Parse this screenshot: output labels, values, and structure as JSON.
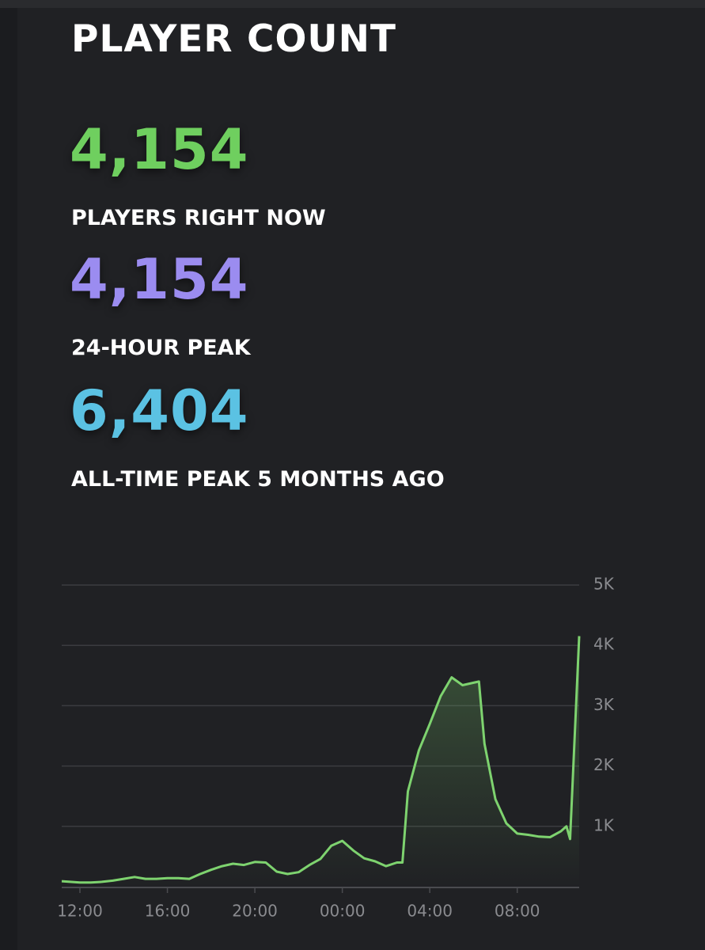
{
  "title": "PLAYER COUNT",
  "stats": [
    {
      "value": "4,154",
      "label": "PLAYERS RIGHT NOW",
      "color": "#6fcf5f"
    },
    {
      "value": "4,154",
      "label": "24-HOUR PEAK",
      "color": "#9b8cf0"
    },
    {
      "value": "6,404",
      "label": "ALL-TIME PEAK 5 MONTHS AGO",
      "color": "#5bc2e3"
    }
  ],
  "chart_data": {
    "type": "line",
    "x": [
      "11:10",
      "12:00",
      "12:30",
      "13:00",
      "13:30",
      "14:00",
      "14:30",
      "15:00",
      "15:30",
      "16:00",
      "16:30",
      "17:00",
      "17:30",
      "18:00",
      "18:30",
      "19:00",
      "19:30",
      "20:00",
      "20:30",
      "21:00",
      "21:30",
      "22:00",
      "22:30",
      "23:00",
      "23:30",
      "00:00",
      "00:30",
      "01:00",
      "01:30",
      "02:00",
      "02:30",
      "02:45",
      "03:00",
      "03:30",
      "04:00",
      "04:30",
      "05:00",
      "05:30",
      "06:00",
      "06:15",
      "06:30",
      "07:00",
      "07:30",
      "08:00",
      "08:30",
      "09:00",
      "09:30",
      "10:00",
      "10:15",
      "10:25",
      "10:50"
    ],
    "series": [
      {
        "color": "#7ed36f",
        "values": [
          90,
          70,
          70,
          80,
          100,
          130,
          160,
          130,
          130,
          140,
          140,
          130,
          210,
          280,
          340,
          380,
          360,
          410,
          400,
          250,
          210,
          240,
          360,
          460,
          680,
          760,
          600,
          470,
          420,
          340,
          400,
          400,
          1580,
          2260,
          2700,
          3160,
          3470,
          3340,
          3380,
          3400,
          2370,
          1450,
          1050,
          880,
          860,
          830,
          820,
          920,
          1000,
          790,
          4154
        ]
      }
    ],
    "ylim": [
      0,
      5000
    ],
    "yticks": [
      {
        "value": 1000,
        "label": "1K"
      },
      {
        "value": 2000,
        "label": "2K"
      },
      {
        "value": 3000,
        "label": "3K"
      },
      {
        "value": 4000,
        "label": "4K"
      },
      {
        "value": 5000,
        "label": "5K"
      }
    ],
    "xlim": [
      "11:10",
      "10:50"
    ],
    "xticks": [
      "12:00",
      "16:00",
      "20:00",
      "00:00",
      "04:00",
      "08:00"
    ],
    "grid": true
  }
}
